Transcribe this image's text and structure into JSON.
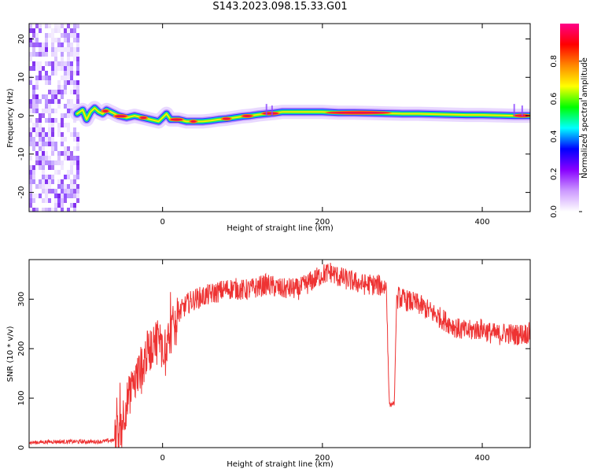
{
  "title": "S143.2023.098.15.33.G01",
  "chart_data": [
    {
      "type": "heatmap",
      "xlabel": "Height of straight line (km)",
      "ylabel": "Frequency (Hz)",
      "xlim": [
        -167,
        460
      ],
      "ylim": [
        -25,
        24
      ],
      "x_ticks": [
        0,
        200,
        400
      ],
      "y_ticks": [
        -20,
        -10,
        0,
        10,
        20
      ],
      "grid": false,
      "noise_region_x": [
        -167,
        -107
      ],
      "ridge": {
        "x": [
          -107,
          -100,
          -95,
          -90,
          -85,
          -80,
          -75,
          -70,
          -65,
          -60,
          -55,
          -45,
          -35,
          -25,
          -15,
          -5,
          0,
          5,
          10,
          20,
          30,
          40,
          50,
          60,
          70,
          80,
          90,
          100,
          110,
          120,
          130,
          140,
          150,
          160,
          170,
          180,
          200,
          220,
          240,
          260,
          280,
          300,
          320,
          340,
          360,
          380,
          400,
          420,
          440,
          460
        ],
        "freq_hz": [
          0.5,
          1.5,
          -1.0,
          1.0,
          2.0,
          1.0,
          0.5,
          1.5,
          1.0,
          0.5,
          0.0,
          -0.5,
          0.0,
          -0.5,
          -1.0,
          -1.5,
          -0.5,
          0.5,
          -1.0,
          -1.0,
          -1.5,
          -1.5,
          -1.5,
          -1.3,
          -1.0,
          -0.8,
          -0.5,
          -0.2,
          0.0,
          0.3,
          0.5,
          0.7,
          1.0,
          1.0,
          1.0,
          1.0,
          1.0,
          0.8,
          0.8,
          0.7,
          0.6,
          0.5,
          0.5,
          0.4,
          0.3,
          0.2,
          0.2,
          0.1,
          0.0,
          0.0
        ]
      },
      "colorbar": {
        "label": "Normalized spectral amplitude",
        "range": [
          0,
          1
        ],
        "ticks": [
          "0.0",
          "0.2",
          "0.4",
          "0.6",
          "0.8"
        ],
        "colors": [
          "#ffffff",
          "#cc99ff",
          "#8800ff",
          "#0000ff",
          "#00ffff",
          "#00ff00",
          "#ffff00",
          "#ff8800",
          "#ff0000",
          "#ff0088"
        ]
      }
    },
    {
      "type": "line",
      "xlabel": "Height of straight line (km)",
      "ylabel": "SNR (10 * v/v)",
      "xlim": [
        -167,
        460
      ],
      "ylim": [
        0,
        380
      ],
      "x_ticks": [
        0,
        200,
        400
      ],
      "y_ticks": [
        0,
        100,
        200,
        300
      ],
      "grid": false,
      "color": "#ee3333",
      "series": [
        {
          "x": [
            -167,
            -140,
            -110,
            -80,
            -60,
            -55,
            -50,
            -45,
            -40,
            -35,
            -30,
            -25,
            -20,
            -15,
            -10,
            -5,
            0,
            10,
            20,
            30,
            40,
            50,
            60,
            70,
            80,
            90,
            100,
            110,
            120,
            130,
            140,
            150,
            160,
            170,
            180,
            190,
            200,
            210,
            220,
            230,
            240,
            250,
            260,
            270,
            280,
            282,
            283,
            284,
            285,
            286,
            290,
            293,
            294,
            295,
            300,
            310,
            320,
            330,
            340,
            350,
            360,
            370,
            380,
            390,
            400,
            410,
            420,
            430,
            440,
            450,
            460
          ],
          "values": [
            10,
            12,
            12,
            12,
            15,
            30,
            60,
            90,
            110,
            130,
            150,
            170,
            190,
            200,
            215,
            225,
            200,
            230,
            270,
            290,
            300,
            305,
            310,
            315,
            320,
            322,
            318,
            320,
            325,
            330,
            325,
            320,
            322,
            320,
            330,
            340,
            350,
            355,
            345,
            340,
            335,
            330,
            330,
            328,
            325,
            200,
            120,
            90,
            85,
            88,
            90,
            310,
            300,
            305,
            300,
            295,
            290,
            280,
            270,
            260,
            250,
            240,
            235,
            238,
            240,
            232,
            228,
            232,
            228,
            230,
            232
          ]
        }
      ]
    }
  ]
}
